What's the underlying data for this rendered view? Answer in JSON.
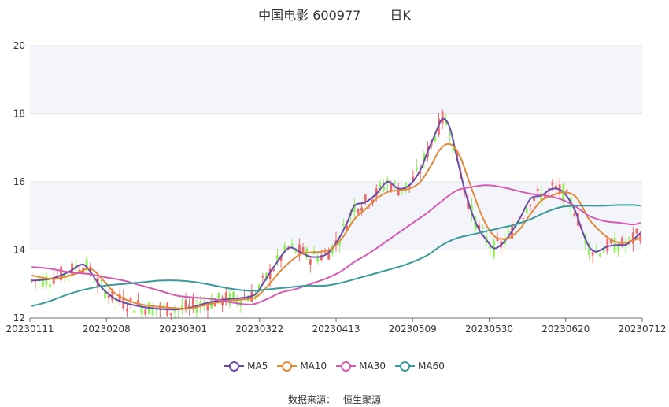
{
  "title": {
    "stock": "中国电影 600977",
    "period": "日K"
  },
  "source": {
    "label": "数据来源：",
    "name": "恒生聚源"
  },
  "colors": {
    "up": "#ee6a6a",
    "down": "#8ef05a",
    "ma5": "#6a4ba7",
    "ma10": "#e08a3c",
    "ma30": "#d25db0",
    "ma60": "#3b9a9c",
    "plot_band": "#f4f5fb",
    "grid": "#e3e6f0"
  },
  "chart_data": {
    "type": "candlestick",
    "y_range": [
      12,
      20
    ],
    "y_ticks": [
      "12",
      "14",
      "16",
      "18",
      "20"
    ],
    "x_ticks": [
      "20230111",
      "20230208",
      "20230301",
      "20230322",
      "20230413",
      "20230509",
      "20230530",
      "20230620",
      "20230712"
    ],
    "series": [
      {
        "name": "MA5",
        "color": "#6a4ba7",
        "points": [
          [
            0,
            13.1
          ],
          [
            5,
            13.15
          ],
          [
            10,
            13.35
          ],
          [
            13,
            13.55
          ],
          [
            15,
            13.5
          ],
          [
            19,
            12.9
          ],
          [
            23,
            12.55
          ],
          [
            27,
            12.4
          ],
          [
            32,
            12.3
          ],
          [
            38,
            12.25
          ],
          [
            43,
            12.3
          ],
          [
            48,
            12.45
          ],
          [
            53,
            12.55
          ],
          [
            58,
            12.6
          ],
          [
            61,
            12.7
          ],
          [
            63,
            13.0
          ],
          [
            66,
            13.5
          ],
          [
            70,
            14.05
          ],
          [
            73,
            13.95
          ],
          [
            76,
            13.8
          ],
          [
            80,
            13.85
          ],
          [
            83,
            14.2
          ],
          [
            86,
            14.8
          ],
          [
            88,
            15.3
          ],
          [
            91,
            15.4
          ],
          [
            94,
            15.65
          ],
          [
            97,
            16.0
          ],
          [
            100,
            15.8
          ],
          [
            103,
            15.9
          ],
          [
            106,
            16.35
          ],
          [
            108,
            16.9
          ],
          [
            110,
            17.4
          ],
          [
            112,
            17.85
          ],
          [
            114,
            17.6
          ],
          [
            116,
            16.7
          ],
          [
            118,
            15.8
          ],
          [
            120,
            15.1
          ],
          [
            122,
            14.6
          ],
          [
            124,
            14.3
          ],
          [
            126,
            14.05
          ],
          [
            128,
            14.15
          ],
          [
            130,
            14.4
          ],
          [
            133,
            14.9
          ],
          [
            136,
            15.5
          ],
          [
            139,
            15.6
          ],
          [
            142,
            15.8
          ],
          [
            145,
            15.7
          ],
          [
            148,
            15.2
          ],
          [
            150,
            14.6
          ],
          [
            152,
            14.1
          ],
          [
            154,
            13.95
          ],
          [
            157,
            14.1
          ],
          [
            160,
            14.15
          ],
          [
            162,
            14.15
          ],
          [
            164,
            14.3
          ],
          [
            166,
            14.5
          ]
        ]
      },
      {
        "name": "MA10",
        "color": "#e08a3c",
        "points": [
          [
            0,
            13.25
          ],
          [
            6,
            13.15
          ],
          [
            12,
            13.3
          ],
          [
            16,
            13.45
          ],
          [
            20,
            13.05
          ],
          [
            23,
            12.7
          ],
          [
            28,
            12.45
          ],
          [
            33,
            12.35
          ],
          [
            38,
            12.3
          ],
          [
            43,
            12.28
          ],
          [
            48,
            12.4
          ],
          [
            53,
            12.5
          ],
          [
            58,
            12.55
          ],
          [
            61,
            12.6
          ],
          [
            64,
            12.9
          ],
          [
            68,
            13.4
          ],
          [
            71,
            13.7
          ],
          [
            74,
            13.9
          ],
          [
            79,
            13.95
          ],
          [
            82,
            14.05
          ],
          [
            85,
            14.4
          ],
          [
            88,
            14.9
          ],
          [
            91,
            15.2
          ],
          [
            94,
            15.5
          ],
          [
            97,
            15.7
          ],
          [
            100,
            15.75
          ],
          [
            103,
            15.8
          ],
          [
            106,
            16.0
          ],
          [
            109,
            16.5
          ],
          [
            111,
            16.9
          ],
          [
            113,
            17.1
          ],
          [
            115,
            17.05
          ],
          [
            117,
            16.7
          ],
          [
            119,
            16.1
          ],
          [
            121,
            15.5
          ],
          [
            123,
            14.95
          ],
          [
            125,
            14.55
          ],
          [
            127,
            14.35
          ],
          [
            130,
            14.35
          ],
          [
            133,
            14.6
          ],
          [
            136,
            15.05
          ],
          [
            139,
            15.45
          ],
          [
            142,
            15.6
          ],
          [
            145,
            15.7
          ],
          [
            148,
            15.6
          ],
          [
            150,
            15.3
          ],
          [
            152,
            14.9
          ],
          [
            155,
            14.55
          ],
          [
            158,
            14.3
          ],
          [
            161,
            14.2
          ],
          [
            163,
            14.25
          ],
          [
            166,
            14.35
          ]
        ]
      },
      {
        "name": "MA30",
        "color": "#d25db0",
        "points": [
          [
            0,
            13.5
          ],
          [
            5,
            13.45
          ],
          [
            10,
            13.35
          ],
          [
            15,
            13.3
          ],
          [
            20,
            13.2
          ],
          [
            25,
            13.1
          ],
          [
            30,
            12.95
          ],
          [
            35,
            12.8
          ],
          [
            40,
            12.65
          ],
          [
            45,
            12.6
          ],
          [
            50,
            12.55
          ],
          [
            55,
            12.45
          ],
          [
            60,
            12.4
          ],
          [
            64,
            12.55
          ],
          [
            68,
            12.75
          ],
          [
            72,
            12.85
          ],
          [
            76,
            13.0
          ],
          [
            80,
            13.15
          ],
          [
            84,
            13.35
          ],
          [
            88,
            13.65
          ],
          [
            92,
            13.9
          ],
          [
            96,
            14.2
          ],
          [
            100,
            14.5
          ],
          [
            104,
            14.8
          ],
          [
            108,
            15.1
          ],
          [
            112,
            15.45
          ],
          [
            116,
            15.75
          ],
          [
            120,
            15.85
          ],
          [
            124,
            15.9
          ],
          [
            128,
            15.85
          ],
          [
            132,
            15.75
          ],
          [
            136,
            15.65
          ],
          [
            140,
            15.6
          ],
          [
            144,
            15.5
          ],
          [
            148,
            15.3
          ],
          [
            152,
            15.0
          ],
          [
            156,
            14.85
          ],
          [
            160,
            14.8
          ],
          [
            164,
            14.75
          ],
          [
            166,
            14.8
          ]
        ]
      },
      {
        "name": "MA60",
        "color": "#3b9a9c",
        "points": [
          [
            0,
            12.35
          ],
          [
            5,
            12.5
          ],
          [
            10,
            12.7
          ],
          [
            15,
            12.85
          ],
          [
            20,
            12.95
          ],
          [
            25,
            13.0
          ],
          [
            30,
            13.05
          ],
          [
            35,
            13.1
          ],
          [
            40,
            13.1
          ],
          [
            45,
            13.05
          ],
          [
            50,
            12.95
          ],
          [
            55,
            12.85
          ],
          [
            60,
            12.8
          ],
          [
            65,
            12.85
          ],
          [
            70,
            12.9
          ],
          [
            75,
            12.95
          ],
          [
            80,
            12.95
          ],
          [
            85,
            13.05
          ],
          [
            90,
            13.2
          ],
          [
            95,
            13.35
          ],
          [
            100,
            13.5
          ],
          [
            104,
            13.65
          ],
          [
            108,
            13.85
          ],
          [
            112,
            14.15
          ],
          [
            116,
            14.35
          ],
          [
            120,
            14.45
          ],
          [
            124,
            14.55
          ],
          [
            128,
            14.65
          ],
          [
            132,
            14.75
          ],
          [
            136,
            14.9
          ],
          [
            140,
            15.1
          ],
          [
            144,
            15.25
          ],
          [
            148,
            15.3
          ],
          [
            152,
            15.3
          ],
          [
            156,
            15.3
          ],
          [
            160,
            15.32
          ],
          [
            164,
            15.32
          ],
          [
            166,
            15.3
          ]
        ]
      }
    ]
  }
}
